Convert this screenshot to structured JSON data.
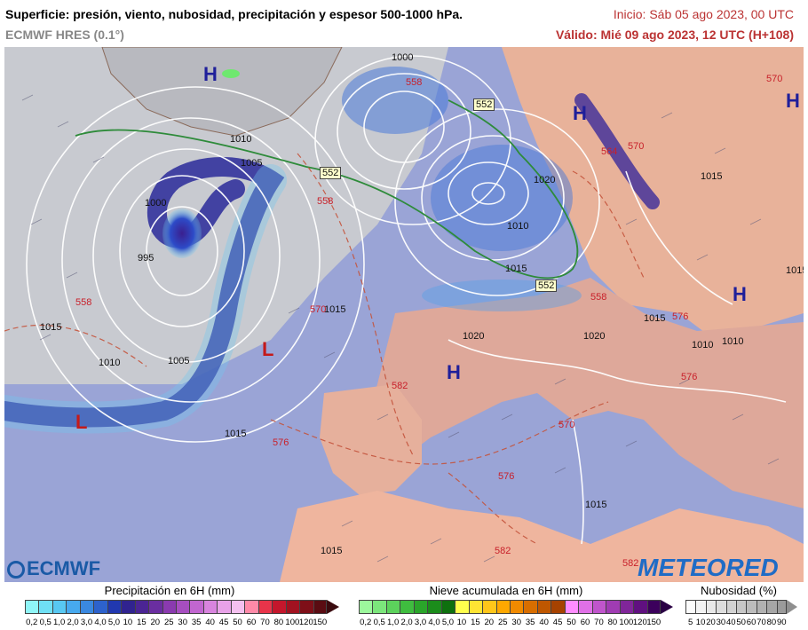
{
  "header": {
    "title": "Superficie: presión, viento, nubosidad, precipitación y espesor 500-1000 hPa.",
    "model": "ECMWF HRES (0.1°)",
    "init": "Inicio: Sáb 05 ago 2023, 00 UTC",
    "valid": "Válido: Mié 09 ago 2023, 12 UTC (H+108)"
  },
  "map": {
    "pressure_labels": [
      "1000",
      "1005",
      "1010",
      "1015",
      "1020",
      "1010",
      "995",
      "1000",
      "1005",
      "1010",
      "1015",
      "1015",
      "1015",
      "1020",
      "1015",
      "1010",
      "1020",
      "1015",
      "1015",
      "1015",
      "1015",
      "1010"
    ],
    "thickness_labels": [
      "552",
      "552",
      "552",
      "558",
      "558",
      "558",
      "570",
      "558",
      "564",
      "570",
      "570",
      "576",
      "576",
      "576",
      "582",
      "582",
      "582",
      "570",
      "576"
    ],
    "high_label": "H",
    "low_label": "L"
  },
  "logos": {
    "ecmwf": "ECMWF",
    "meteored": "METEORED"
  },
  "legends": {
    "precip": {
      "title": "Precipitación en 6H (mm)",
      "ticks": [
        "0,2",
        "0,5",
        "1,0",
        "2,0",
        "3,0",
        "4,0",
        "5,0",
        "10",
        "15",
        "20",
        "25",
        "30",
        "35",
        "40",
        "45",
        "50",
        "60",
        "70",
        "80",
        "100",
        "120",
        "150"
      ],
      "colors": [
        "#8ff5f7",
        "#6fe0f5",
        "#58c8f2",
        "#47a9ee",
        "#3a88e0",
        "#2d62cc",
        "#2138b0",
        "#30238f",
        "#4b2594",
        "#6a2ea0",
        "#8a3aaf",
        "#a64ec0",
        "#c166d0",
        "#d884de",
        "#e8a2e8",
        "#f4c0ef",
        "#ff8aa8",
        "#e8344a",
        "#c4172c",
        "#a11220",
        "#7e0f18",
        "#5a0c12"
      ],
      "arrow": "#3a0a0e"
    },
    "snow": {
      "title": "Nieve acumulada en 6H (mm)",
      "ticks": [
        "0,2",
        "0,5",
        "1,0",
        "2,0",
        "3,0",
        "4,0",
        "5,0",
        "10",
        "15",
        "20",
        "25",
        "30",
        "35",
        "40",
        "45",
        "50",
        "60",
        "70",
        "80",
        "100",
        "120",
        "150"
      ],
      "colors": [
        "#9cf89c",
        "#7ce67c",
        "#5cd25c",
        "#3fbd3f",
        "#2aa52a",
        "#1b8c1b",
        "#0e700e",
        "#ffff4d",
        "#ffe433",
        "#ffc61a",
        "#ffa800",
        "#f08a00",
        "#d86e00",
        "#bf5700",
        "#a64200",
        "#ff8cff",
        "#e070e6",
        "#c055cc",
        "#a03cb3",
        "#802699",
        "#601080",
        "#3c005c"
      ],
      "arrow": "#2a0044"
    },
    "cloud": {
      "title": "Nubosidad (%)",
      "ticks": [
        "5",
        "10",
        "20",
        "30",
        "40",
        "50",
        "60",
        "70",
        "80",
        "90"
      ],
      "colors": [
        "#fbfbfb",
        "#f2f2f2",
        "#e8e8e8",
        "#dddddd",
        "#d2d2d2",
        "#c7c7c7",
        "#bcbcbc",
        "#b1b1b1",
        "#a6a6a6",
        "#9b9b9b"
      ],
      "arrow": "#8f8f8f"
    }
  }
}
